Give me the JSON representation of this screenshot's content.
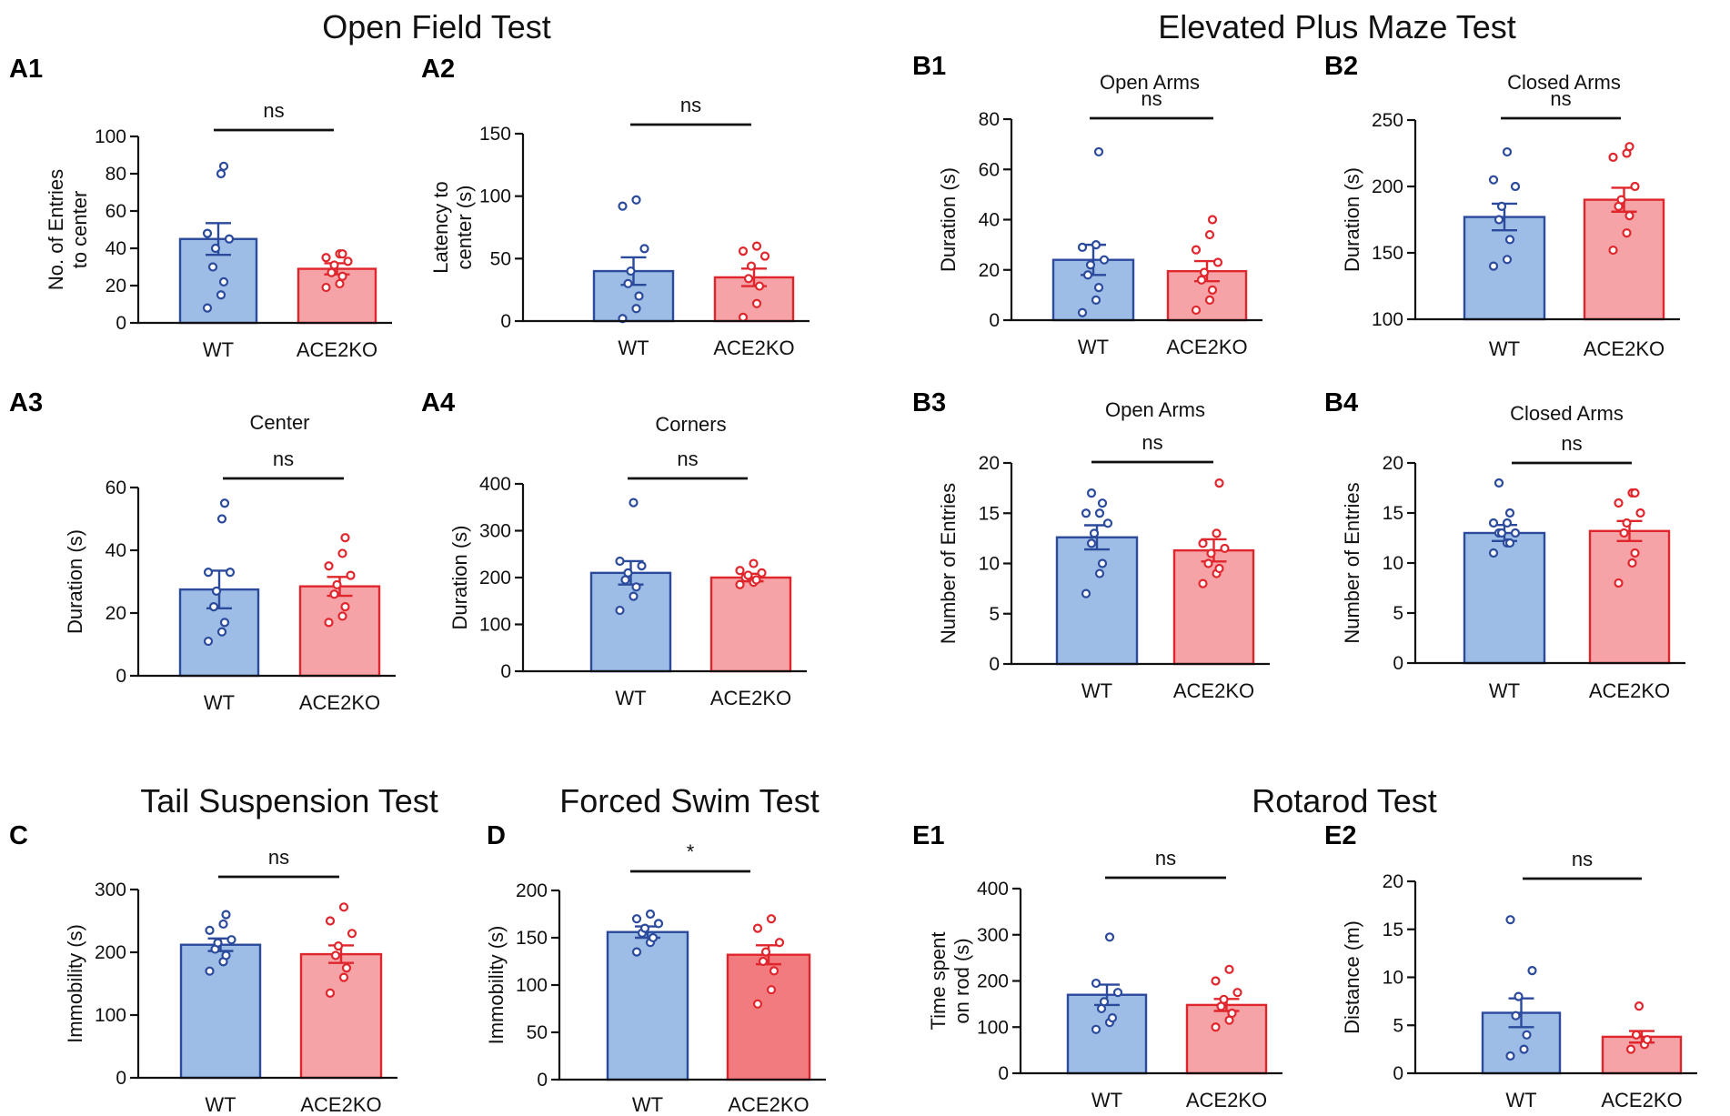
{
  "section_titles": {
    "open_field": "Open Field Test",
    "epm": "Elevated Plus Maze Test",
    "tail": "Tail Suspension Test",
    "swim": "Forced Swim Test",
    "rotarod": "Rotarod Test"
  },
  "colors": {
    "wt_fill": "#9dbde6",
    "wt_stroke": "#2b4a9c",
    "ko_fill": "#f5a3a6",
    "ko_fill_dark": "#f27b80",
    "ko_stroke": "#e0262d"
  },
  "chart_data": [
    {
      "id": "A1",
      "type": "bar",
      "letter": "A1",
      "subtitle": "",
      "ylabel": [
        "No. of Entries",
        "to center"
      ],
      "ylim": [
        0,
        100
      ],
      "yticks": [
        0,
        20,
        40,
        60,
        80,
        100
      ],
      "categories": [
        "WT",
        "ACE2KO"
      ],
      "values": [
        45,
        29
      ],
      "sem": [
        8.5,
        3
      ],
      "points": [
        [
          8,
          15,
          22,
          30,
          40,
          45,
          48,
          80,
          84
        ],
        [
          19,
          21,
          25,
          27,
          31,
          33,
          35,
          37,
          37
        ]
      ],
      "sig": "ns"
    },
    {
      "id": "A2",
      "type": "bar",
      "letter": "A2",
      "subtitle": "",
      "ylabel": [
        "Latency to",
        "center (s)"
      ],
      "ylim": [
        0,
        150
      ],
      "yticks": [
        0,
        50,
        100,
        150
      ],
      "categories": [
        "WT",
        "ACE2KO"
      ],
      "values": [
        40,
        35
      ],
      "sem": [
        11,
        7
      ],
      "points": [
        [
          2,
          10,
          20,
          30,
          40,
          58,
          92,
          97
        ],
        [
          3,
          14,
          28,
          34,
          44,
          52,
          56,
          60
        ]
      ],
      "sig": "ns"
    },
    {
      "id": "A3",
      "type": "bar",
      "letter": "A3",
      "subtitle": "Center",
      "ylabel": [
        "Duration (s)"
      ],
      "ylim": [
        0,
        60
      ],
      "yticks": [
        0,
        20,
        40,
        60
      ],
      "categories": [
        "WT",
        "ACE2KO"
      ],
      "values": [
        27.5,
        28.5
      ],
      "sem": [
        6,
        3
      ],
      "points": [
        [
          11,
          14,
          17,
          22,
          27,
          33,
          33,
          50,
          55
        ],
        [
          17,
          19,
          22,
          26,
          29,
          32,
          35,
          39,
          44
        ]
      ],
      "sig": "ns"
    },
    {
      "id": "A4",
      "type": "bar",
      "letter": "A4",
      "subtitle": "Corners",
      "ylabel": [
        "Duration (s)"
      ],
      "ylim": [
        0,
        400
      ],
      "yticks": [
        0,
        100,
        200,
        300,
        400
      ],
      "categories": [
        "WT",
        "ACE2KO"
      ],
      "values": [
        210,
        200
      ],
      "sem": [
        25,
        8
      ],
      "points": [
        [
          130,
          160,
          180,
          195,
          210,
          225,
          235,
          360
        ],
        [
          185,
          190,
          195,
          200,
          205,
          210,
          215,
          230
        ]
      ],
      "sig": "ns"
    },
    {
      "id": "B1",
      "type": "bar",
      "letter": "B1",
      "subtitle": "Open Arms",
      "ylabel": [
        "Duration (s)"
      ],
      "ylim": [
        0,
        80
      ],
      "yticks": [
        0,
        20,
        40,
        60,
        80
      ],
      "categories": [
        "WT",
        "ACE2KO"
      ],
      "values": [
        24,
        19.5
      ],
      "sem": [
        6,
        4
      ],
      "points": [
        [
          3,
          8,
          13,
          18,
          22,
          24,
          29,
          30,
          67
        ],
        [
          4,
          8,
          12,
          16,
          19,
          23,
          28,
          34,
          40
        ]
      ],
      "sig": "ns"
    },
    {
      "id": "B2",
      "type": "bar",
      "letter": "B2",
      "subtitle": "Closed Arms",
      "ylabel": [
        "Duration (s)"
      ],
      "ylim": [
        100,
        250
      ],
      "yticks": [
        100,
        150,
        200,
        250
      ],
      "categories": [
        "WT",
        "ACE2KO"
      ],
      "values": [
        177,
        190
      ],
      "sem": [
        10,
        9
      ],
      "points": [
        [
          140,
          145,
          160,
          175,
          185,
          200,
          205,
          226
        ],
        [
          152,
          165,
          178,
          185,
          190,
          200,
          222,
          225,
          230
        ]
      ],
      "sig": "ns"
    },
    {
      "id": "B3",
      "type": "bar",
      "letter": "B3",
      "subtitle": "Open Arms",
      "ylabel": [
        "Number of Entries"
      ],
      "ylim": [
        0,
        20
      ],
      "yticks": [
        0,
        5,
        10,
        15,
        20
      ],
      "categories": [
        "WT",
        "ACE2KO"
      ],
      "values": [
        12.6,
        11.3
      ],
      "sem": [
        1.2,
        1.1
      ],
      "points": [
        [
          7,
          9,
          10,
          12,
          13,
          14,
          15,
          15,
          16,
          17
        ],
        [
          8,
          9,
          9.5,
          10,
          11,
          11.5,
          12,
          13,
          18
        ]
      ],
      "sig": "ns"
    },
    {
      "id": "B4",
      "type": "bar",
      "letter": "B4",
      "subtitle": "Closed Arms",
      "ylabel": [
        "Number of Entries"
      ],
      "ylim": [
        0,
        20
      ],
      "yticks": [
        0,
        5,
        10,
        15,
        20
      ],
      "categories": [
        "WT",
        "ACE2KO"
      ],
      "values": [
        13,
        13.2
      ],
      "sem": [
        0.8,
        1
      ],
      "points": [
        [
          11,
          12,
          12,
          13,
          13,
          13,
          14,
          14,
          15,
          18
        ],
        [
          8,
          10,
          11,
          13,
          14,
          15,
          16,
          17,
          17
        ]
      ],
      "sig": "ns"
    },
    {
      "id": "C",
      "type": "bar",
      "letter": "C",
      "subtitle": "",
      "ylabel": [
        "Immobility (s)"
      ],
      "ylim": [
        0,
        300
      ],
      "yticks": [
        0,
        100,
        200,
        300
      ],
      "categories": [
        "WT",
        "ACE2KO"
      ],
      "values": [
        212,
        197
      ],
      "sem": [
        10,
        14
      ],
      "points": [
        [
          170,
          185,
          195,
          205,
          215,
          220,
          235,
          245,
          260
        ],
        [
          135,
          160,
          175,
          195,
          210,
          230,
          250,
          272
        ]
      ],
      "sig": "ns"
    },
    {
      "id": "D",
      "type": "bar",
      "letter": "D",
      "subtitle": "",
      "ylabel": [
        "Immobility (s)"
      ],
      "ylim": [
        0,
        200
      ],
      "yticks": [
        0,
        50,
        100,
        150,
        200
      ],
      "categories": [
        "WT",
        "ACE2KO"
      ],
      "values": [
        156,
        132
      ],
      "sem": [
        6,
        10
      ],
      "points": [
        [
          135,
          145,
          150,
          155,
          160,
          165,
          170,
          175
        ],
        [
          80,
          95,
          115,
          125,
          135,
          145,
          160,
          170
        ]
      ],
      "sig": "*"
    },
    {
      "id": "E1",
      "type": "bar",
      "letter": "E1",
      "subtitle": "",
      "ylabel": [
        "Time spent",
        "on rod (s)"
      ],
      "ylim": [
        0,
        400
      ],
      "yticks": [
        0,
        100,
        200,
        300,
        400
      ],
      "categories": [
        "WT",
        "ACE2KO"
      ],
      "values": [
        170,
        148
      ],
      "sem": [
        22,
        13
      ],
      "points": [
        [
          95,
          110,
          120,
          140,
          155,
          175,
          195,
          295
        ],
        [
          100,
          115,
          130,
          145,
          160,
          175,
          200,
          225
        ]
      ],
      "sig": "ns"
    },
    {
      "id": "E2",
      "type": "bar",
      "letter": "E2",
      "subtitle": "",
      "ylabel": [
        "Distance (m)"
      ],
      "ylim": [
        0,
        20
      ],
      "yticks": [
        0,
        5,
        10,
        15,
        20
      ],
      "categories": [
        "WT",
        "ACE2KO"
      ],
      "values": [
        6.3,
        3.8
      ],
      "sem": [
        1.5,
        0.6
      ],
      "points": [
        [
          1.8,
          2.5,
          4,
          6,
          8,
          10.7,
          16
        ],
        [
          2.5,
          3,
          3.5,
          4,
          7
        ]
      ],
      "sig": "ns"
    }
  ]
}
